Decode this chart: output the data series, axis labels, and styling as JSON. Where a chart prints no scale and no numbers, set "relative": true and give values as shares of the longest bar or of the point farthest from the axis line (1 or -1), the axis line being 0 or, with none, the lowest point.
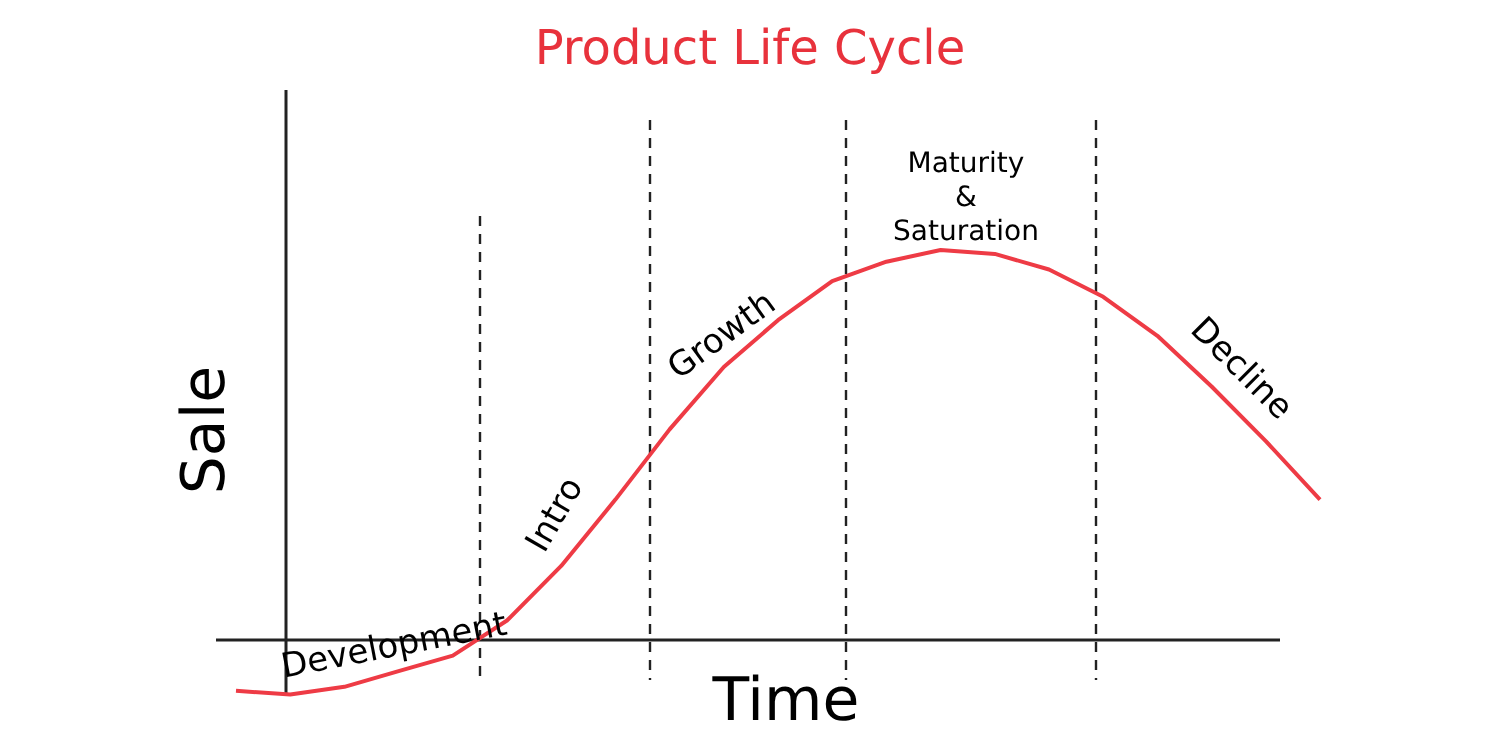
{
  "chart_data": {
    "type": "line",
    "title": "Product Life Cycle",
    "xlabel": "Time",
    "ylabel": "Sale",
    "relative": true,
    "marker": "none",
    "line_style": "solid",
    "categories": [
      null,
      null,
      null,
      null,
      null,
      null,
      null,
      null,
      null,
      null,
      null,
      null,
      null,
      null,
      null,
      null,
      null,
      null,
      null,
      null,
      null
    ],
    "series": [
      {
        "color": "#ee3b45",
        "values": [
          -0.13,
          -0.14,
          -0.12,
          -0.08,
          -0.04,
          0.05,
          0.19,
          0.36,
          0.54,
          0.7,
          0.82,
          0.92,
          0.97,
          1,
          0.99,
          0.95,
          0.88,
          0.78,
          0.65,
          0.51,
          0.36
        ]
      }
    ],
    "annotations": [
      "Development",
      "Intro",
      "Growth",
      "Maturity\n&\nSaturation",
      "Decline"
    ]
  }
}
